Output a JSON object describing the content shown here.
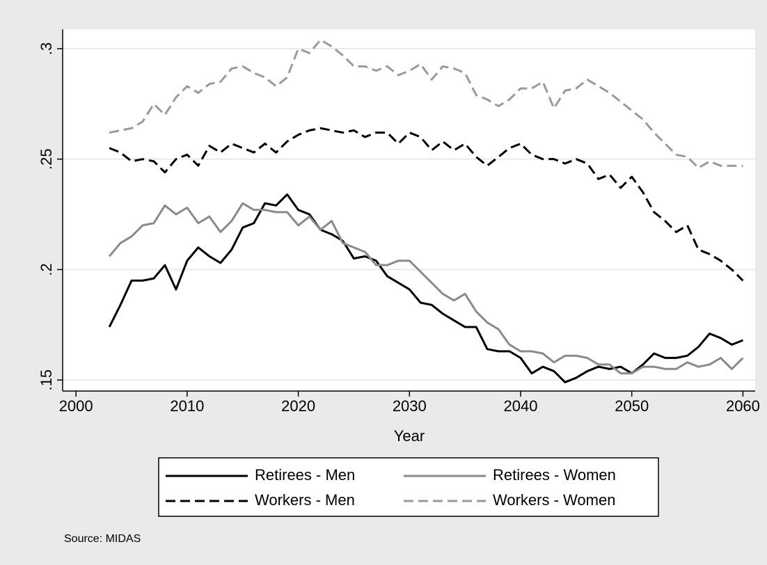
{
  "chart_data": {
    "type": "line",
    "x_label": "Year",
    "note": "Source: MIDAS",
    "x": [
      2003,
      2004,
      2005,
      2006,
      2007,
      2008,
      2009,
      2010,
      2011,
      2012,
      2013,
      2014,
      2015,
      2016,
      2017,
      2018,
      2019,
      2020,
      2021,
      2022,
      2023,
      2024,
      2025,
      2026,
      2027,
      2028,
      2029,
      2030,
      2031,
      2032,
      2033,
      2034,
      2035,
      2036,
      2037,
      2038,
      2039,
      2040,
      2041,
      2042,
      2043,
      2044,
      2045,
      2046,
      2047,
      2048,
      2049,
      2050,
      2051,
      2052,
      2053,
      2054,
      2055,
      2056,
      2057,
      2058,
      2059,
      2060
    ],
    "xlim": [
      1998.8,
      2061.1
    ],
    "xticks": [
      2000,
      2010,
      2020,
      2030,
      2040,
      2050,
      2060
    ],
    "ylim": [
      0.145,
      0.3088
    ],
    "yticks": [
      {
        "value": 0.15,
        "label": ".15"
      },
      {
        "value": 0.2,
        "label": ".2"
      },
      {
        "value": 0.25,
        "label": ".25"
      },
      {
        "value": 0.3,
        "label": ".3"
      }
    ],
    "grid": true,
    "legend_position": "bottom",
    "series": [
      {
        "name": "Retirees - Men",
        "color": "#000000",
        "style": "solid",
        "values": [
          0.174,
          0.184,
          0.195,
          0.195,
          0.196,
          0.202,
          0.191,
          0.204,
          0.21,
          0.206,
          0.203,
          0.209,
          0.219,
          0.221,
          0.23,
          0.229,
          0.234,
          0.227,
          0.225,
          0.218,
          0.216,
          0.213,
          0.205,
          0.206,
          0.204,
          0.197,
          0.194,
          0.191,
          0.185,
          0.184,
          0.18,
          0.177,
          0.174,
          0.174,
          0.164,
          0.163,
          0.163,
          0.16,
          0.153,
          0.156,
          0.154,
          0.149,
          0.151,
          0.154,
          0.156,
          0.155,
          0.156,
          0.153,
          0.157,
          0.162,
          0.16,
          0.16,
          0.161,
          0.165,
          0.171,
          0.169,
          0.166,
          0.168
        ]
      },
      {
        "name": "Retirees - Women",
        "color": "#8a8a8a",
        "style": "solid",
        "values": [
          0.206,
          0.212,
          0.215,
          0.22,
          0.221,
          0.229,
          0.225,
          0.228,
          0.221,
          0.224,
          0.217,
          0.222,
          0.23,
          0.227,
          0.227,
          0.226,
          0.226,
          0.22,
          0.224,
          0.218,
          0.222,
          0.212,
          0.21,
          0.208,
          0.202,
          0.202,
          0.204,
          0.204,
          0.199,
          0.194,
          0.189,
          0.186,
          0.189,
          0.181,
          0.176,
          0.173,
          0.166,
          0.163,
          0.163,
          0.162,
          0.158,
          0.161,
          0.161,
          0.16,
          0.157,
          0.157,
          0.153,
          0.153,
          0.156,
          0.156,
          0.155,
          0.155,
          0.158,
          0.156,
          0.157,
          0.16,
          0.155,
          0.16
        ]
      },
      {
        "name": "Workers - Men",
        "color": "#000000",
        "style": "dashed",
        "values": [
          0.255,
          0.253,
          0.249,
          0.25,
          0.249,
          0.244,
          0.25,
          0.252,
          0.247,
          0.256,
          0.253,
          0.257,
          0.255,
          0.253,
          0.257,
          0.253,
          0.258,
          0.261,
          0.263,
          0.264,
          0.263,
          0.262,
          0.263,
          0.26,
          0.262,
          0.262,
          0.257,
          0.262,
          0.26,
          0.254,
          0.258,
          0.254,
          0.257,
          0.251,
          0.247,
          0.251,
          0.255,
          0.257,
          0.252,
          0.25,
          0.25,
          0.248,
          0.25,
          0.248,
          0.241,
          0.243,
          0.237,
          0.242,
          0.235,
          0.226,
          0.222,
          0.217,
          0.22,
          0.209,
          0.207,
          0.204,
          0.2,
          0.195
        ]
      },
      {
        "name": "Workers - Women",
        "color": "#9a9a9a",
        "style": "dashed",
        "values": [
          0.262,
          0.263,
          0.264,
          0.267,
          0.275,
          0.27,
          0.278,
          0.283,
          0.28,
          0.284,
          0.285,
          0.291,
          0.292,
          0.289,
          0.287,
          0.283,
          0.287,
          0.3,
          0.298,
          0.304,
          0.301,
          0.297,
          0.292,
          0.292,
          0.29,
          0.292,
          0.288,
          0.29,
          0.293,
          0.286,
          0.292,
          0.291,
          0.289,
          0.279,
          0.277,
          0.274,
          0.277,
          0.282,
          0.282,
          0.285,
          0.273,
          0.281,
          0.282,
          0.286,
          0.283,
          0.28,
          0.276,
          0.272,
          0.268,
          0.262,
          0.257,
          0.252,
          0.251,
          0.246,
          0.249,
          0.247,
          0.247,
          0.247
        ]
      }
    ]
  }
}
